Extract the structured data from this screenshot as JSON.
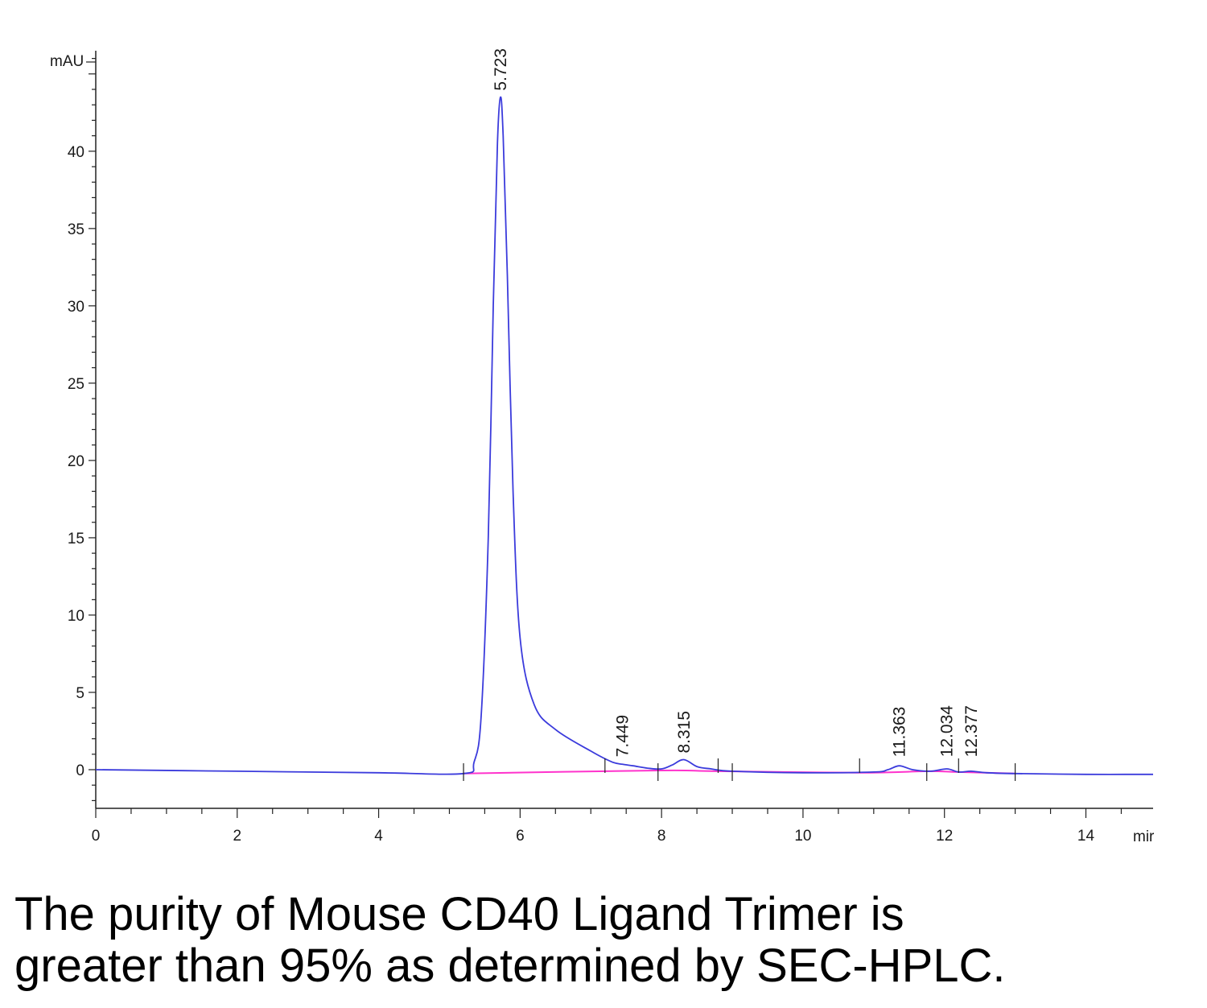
{
  "chart_data": {
    "type": "line",
    "ylabel": "mAU",
    "xlabel": "mir",
    "xlim": [
      0,
      14.95
    ],
    "ylim": [
      -2.5,
      46.5
    ],
    "x_ticks": [
      "0",
      "2",
      "4",
      "6",
      "8",
      "10",
      "12",
      "14"
    ],
    "y_ticks": [
      "0",
      "5",
      "10",
      "15",
      "20",
      "25",
      "30",
      "35",
      "40"
    ],
    "grid": false,
    "series": [
      {
        "role": "signal",
        "color": "#3b3bdc",
        "x": [
          0,
          2,
          4,
          5.2,
          5.35,
          5.45,
          5.55,
          5.62,
          5.68,
          5.723,
          5.76,
          5.82,
          5.9,
          6.0,
          6.2,
          6.5,
          7.0,
          7.3,
          7.449,
          7.6,
          7.8,
          8.0,
          8.15,
          8.315,
          8.5,
          8.7,
          9.0,
          10.0,
          11.0,
          11.2,
          11.363,
          11.55,
          11.8,
          12.034,
          12.2,
          12.377,
          12.6,
          13.0,
          14.0,
          14.95
        ],
        "y": [
          0.0,
          -0.1,
          -0.2,
          -0.25,
          0.5,
          3.5,
          15.0,
          30.0,
          40.5,
          43.5,
          41.0,
          32.0,
          18.0,
          8.5,
          4.2,
          2.6,
          1.2,
          0.5,
          0.35,
          0.25,
          0.1,
          0.05,
          0.3,
          0.65,
          0.2,
          0.05,
          -0.1,
          -0.2,
          -0.15,
          0.0,
          0.25,
          0.0,
          -0.1,
          0.05,
          -0.15,
          -0.1,
          -0.2,
          -0.25,
          -0.3,
          -0.3
        ]
      },
      {
        "role": "baseline",
        "color": "#ff33cc",
        "x": [
          5.2,
          7.95,
          8.8,
          10.8,
          11.75,
          12.2,
          13.0
        ],
        "y": [
          -0.25,
          -0.05,
          -0.1,
          -0.2,
          -0.1,
          -0.15,
          -0.25
        ]
      }
    ],
    "peaks": [
      {
        "label": "5.723",
        "x": 5.723,
        "y": 43.5
      },
      {
        "label": "7.449",
        "x": 7.449,
        "y": 0.35
      },
      {
        "label": "8.315",
        "x": 8.315,
        "y": 0.65
      },
      {
        "label": "11.363",
        "x": 11.363,
        "y": 0.25
      },
      {
        "label": "12.034",
        "x": 12.034,
        "y": 0.05
      },
      {
        "label": "12.377",
        "x": 12.377,
        "y": -0.1
      }
    ],
    "integration_marks_x": [
      5.2,
      7.2,
      7.95,
      8.8,
      9.0,
      10.8,
      11.75,
      12.2,
      13.0
    ]
  },
  "caption": {
    "line1": "The purity of Mouse CD40 Ligand Trimer is",
    "line2": "greater than 95% as determined by SEC-HPLC."
  }
}
